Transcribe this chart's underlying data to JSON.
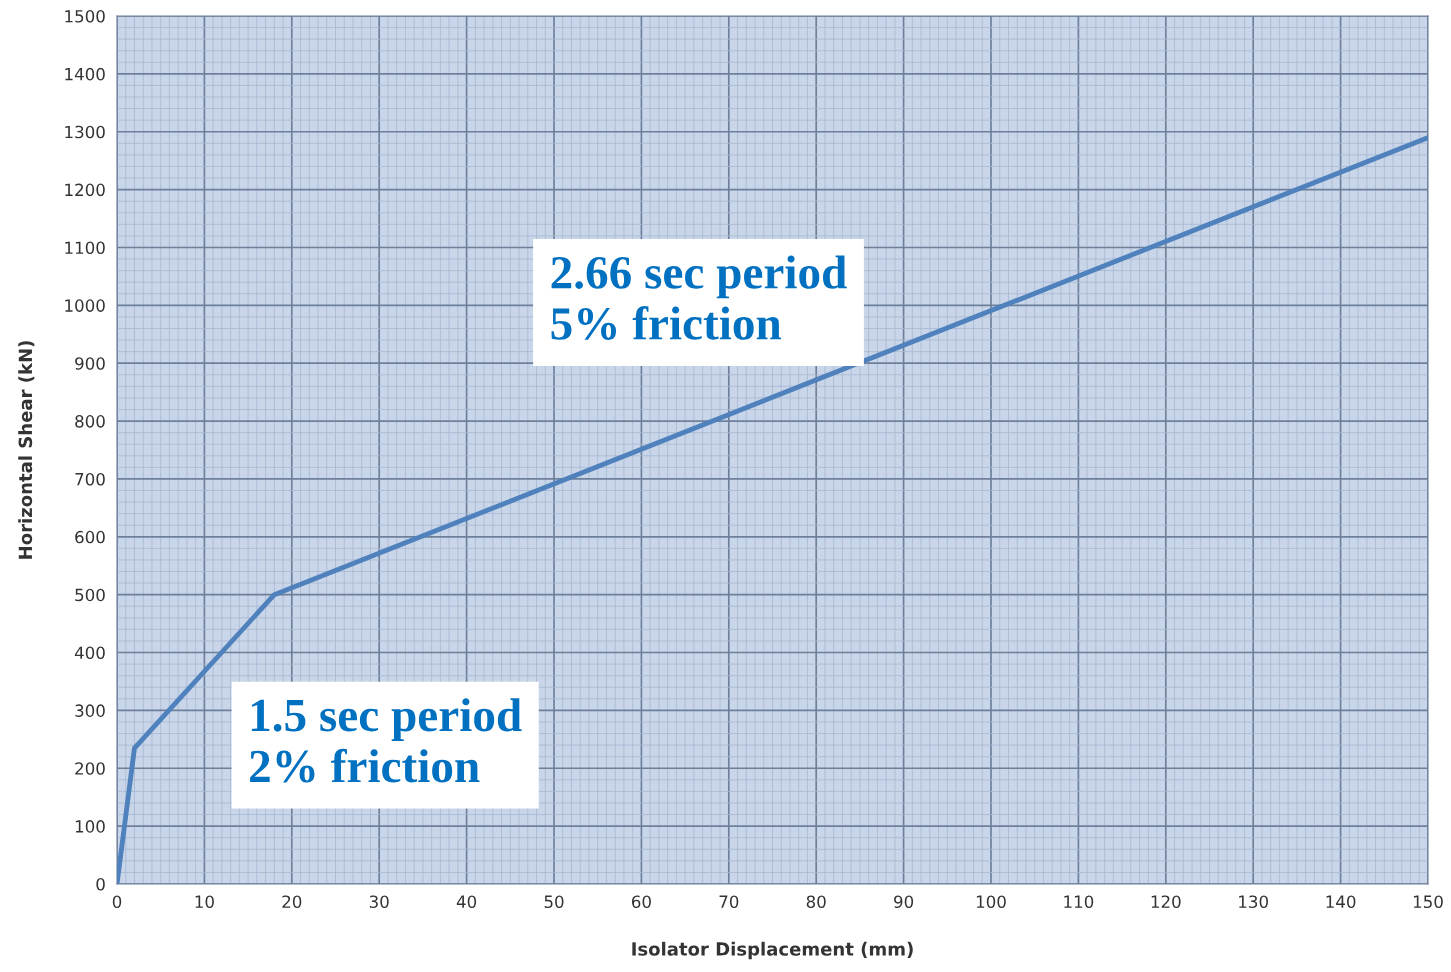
{
  "chart_data": {
    "type": "line",
    "xlabel": "Isolator Displacement (mm)",
    "ylabel": "Horizontal Shear (kN)",
    "x": [
      0,
      2,
      18,
      150
    ],
    "series": [
      {
        "color": "#4f81bd",
        "values": [
          0,
          235,
          500,
          1290
        ]
      }
    ],
    "xlim": [
      0,
      150
    ],
    "xticks": [
      0,
      {
        "value": 1,
        "label": null
      },
      {
        "value": 2,
        "label": null
      },
      {
        "value": 3,
        "label": null
      },
      {
        "value": 4,
        "label": null
      },
      {
        "value": 5,
        "label": null
      },
      {
        "value": 6,
        "label": null
      },
      {
        "value": 7,
        "label": null
      },
      {
        "value": 8,
        "label": null
      },
      {
        "value": 9,
        "label": null
      },
      10,
      {
        "value": 11,
        "label": null
      },
      {
        "value": 12,
        "label": null
      },
      {
        "value": 13,
        "label": null
      },
      {
        "value": 14,
        "label": null
      },
      {
        "value": 15,
        "label": null
      },
      {
        "value": 16,
        "label": null
      },
      {
        "value": 17,
        "label": null
      },
      {
        "value": 18,
        "label": null
      },
      {
        "value": 19,
        "label": null
      },
      20,
      {
        "value": 21,
        "label": null
      },
      {
        "value": 22,
        "label": null
      },
      {
        "value": 23,
        "label": null
      },
      {
        "value": 24,
        "label": null
      },
      {
        "value": 25,
        "label": null
      },
      {
        "value": 26,
        "label": null
      },
      {
        "value": 27,
        "label": null
      },
      {
        "value": 28,
        "label": null
      },
      {
        "value": 29,
        "label": null
      },
      30,
      {
        "value": 31,
        "label": null
      },
      {
        "value": 32,
        "label": null
      },
      {
        "value": 33,
        "label": null
      },
      {
        "value": 34,
        "label": null
      },
      {
        "value": 35,
        "label": null
      },
      {
        "value": 36,
        "label": null
      },
      {
        "value": 37,
        "label": null
      },
      {
        "value": 38,
        "label": null
      },
      {
        "value": 39,
        "label": null
      },
      40,
      {
        "value": 41,
        "label": null
      },
      {
        "value": 42,
        "label": null
      },
      {
        "value": 43,
        "label": null
      },
      {
        "value": 44,
        "label": null
      },
      {
        "value": 45,
        "label": null
      },
      {
        "value": 46,
        "label": null
      },
      {
        "value": 47,
        "label": null
      },
      {
        "value": 48,
        "label": null
      },
      {
        "value": 49,
        "label": null
      },
      50,
      {
        "value": 51,
        "label": null
      },
      {
        "value": 52,
        "label": null
      },
      {
        "value": 53,
        "label": null
      },
      {
        "value": 54,
        "label": null
      },
      {
        "value": 55,
        "label": null
      },
      {
        "value": 56,
        "label": null
      },
      {
        "value": 57,
        "label": null
      },
      {
        "value": 58,
        "label": null
      },
      {
        "value": 59,
        "label": null
      },
      60,
      {
        "value": 61,
        "label": null
      },
      {
        "value": 62,
        "label": null
      },
      {
        "value": 63,
        "label": null
      },
      {
        "value": 64,
        "label": null
      },
      {
        "value": 65,
        "label": null
      },
      {
        "value": 66,
        "label": null
      },
      {
        "value": 67,
        "label": null
      },
      {
        "value": 68,
        "label": null
      },
      {
        "value": 69,
        "label": null
      },
      70,
      {
        "value": 71,
        "label": null
      },
      {
        "value": 72,
        "label": null
      },
      {
        "value": 73,
        "label": null
      },
      {
        "value": 74,
        "label": null
      },
      {
        "value": 75,
        "label": null
      },
      {
        "value": 76,
        "label": null
      },
      {
        "value": 77,
        "label": null
      },
      {
        "value": 78,
        "label": null
      },
      {
        "value": 79,
        "label": null
      },
      80,
      {
        "value": 81,
        "label": null
      },
      {
        "value": 82,
        "label": null
      },
      {
        "value": 83,
        "label": null
      },
      {
        "value": 84,
        "label": null
      },
      {
        "value": 85,
        "label": null
      },
      {
        "value": 86,
        "label": null
      },
      {
        "value": 87,
        "label": null
      },
      {
        "value": 88,
        "label": null
      },
      {
        "value": 89,
        "label": null
      },
      90,
      {
        "value": 91,
        "label": null
      },
      {
        "value": 92,
        "label": null
      },
      {
        "value": 93,
        "label": null
      },
      {
        "value": 94,
        "label": null
      },
      {
        "value": 95,
        "label": null
      },
      {
        "value": 96,
        "label": null
      },
      {
        "value": 97,
        "label": null
      },
      {
        "value": 98,
        "label": null
      },
      {
        "value": 99,
        "label": null
      },
      100,
      {
        "value": 101,
        "label": null
      },
      {
        "value": 102,
        "label": null
      },
      {
        "value": 103,
        "label": null
      },
      {
        "value": 104,
        "label": null
      },
      {
        "value": 105,
        "label": null
      },
      {
        "value": 106,
        "label": null
      },
      {
        "value": 107,
        "label": null
      },
      {
        "value": 108,
        "label": null
      },
      {
        "value": 109,
        "label": null
      },
      110,
      {
        "value": 111,
        "label": null
      },
      {
        "value": 112,
        "label": null
      },
      {
        "value": 113,
        "label": null
      },
      {
        "value": 114,
        "label": null
      },
      {
        "value": 115,
        "label": null
      },
      {
        "value": 116,
        "label": null
      },
      {
        "value": 117,
        "label": null
      },
      {
        "value": 118,
        "label": null
      },
      {
        "value": 119,
        "label": null
      },
      120,
      {
        "value": 121,
        "label": null
      },
      {
        "value": 122,
        "label": null
      },
      {
        "value": 123,
        "label": null
      },
      {
        "value": 124,
        "label": null
      },
      {
        "value": 125,
        "label": null
      },
      {
        "value": 126,
        "label": null
      },
      {
        "value": 127,
        "label": null
      },
      {
        "value": 128,
        "label": null
      },
      {
        "value": 129,
        "label": null
      },
      130,
      {
        "value": 131,
        "label": null
      },
      {
        "value": 132,
        "label": null
      },
      {
        "value": 133,
        "label": null
      },
      {
        "value": 134,
        "label": null
      },
      {
        "value": 135,
        "label": null
      },
      {
        "value": 136,
        "label": null
      },
      {
        "value": 137,
        "label": null
      },
      {
        "value": 138,
        "label": null
      },
      {
        "value": 139,
        "label": null
      },
      140,
      {
        "value": 141,
        "label": null
      },
      {
        "value": 142,
        "label": null
      },
      {
        "value": 143,
        "label": null
      },
      {
        "value": 144,
        "label": null
      },
      {
        "value": 145,
        "label": null
      },
      {
        "value": 146,
        "label": null
      },
      {
        "value": 147,
        "label": null
      },
      {
        "value": 148,
        "label": null
      },
      {
        "value": 149,
        "label": null
      },
      150
    ],
    "ylim": [
      0,
      1500
    ],
    "yticks": [
      0,
      {
        "value": 20,
        "label": null
      },
      {
        "value": 40,
        "label": null
      },
      {
        "value": 60,
        "label": null
      },
      {
        "value": 80,
        "label": null
      },
      100,
      {
        "value": 120,
        "label": null
      },
      {
        "value": 140,
        "label": null
      },
      {
        "value": 160,
        "label": null
      },
      {
        "value": 180,
        "label": null
      },
      200,
      {
        "value": 220,
        "label": null
      },
      {
        "value": 240,
        "label": null
      },
      {
        "value": 260,
        "label": null
      },
      {
        "value": 280,
        "label": null
      },
      300,
      {
        "value": 320,
        "label": null
      },
      {
        "value": 340,
        "label": null
      },
      {
        "value": 360,
        "label": null
      },
      {
        "value": 380,
        "label": null
      },
      400,
      {
        "value": 420,
        "label": null
      },
      {
        "value": 440,
        "label": null
      },
      {
        "value": 460,
        "label": null
      },
      {
        "value": 480,
        "label": null
      },
      500,
      {
        "value": 520,
        "label": null
      },
      {
        "value": 540,
        "label": null
      },
      {
        "value": 560,
        "label": null
      },
      {
        "value": 580,
        "label": null
      },
      600,
      {
        "value": 620,
        "label": null
      },
      {
        "value": 640,
        "label": null
      },
      {
        "value": 660,
        "label": null
      },
      {
        "value": 680,
        "label": null
      },
      700,
      {
        "value": 720,
        "label": null
      },
      {
        "value": 740,
        "label": null
      },
      {
        "value": 760,
        "label": null
      },
      {
        "value": 780,
        "label": null
      },
      800,
      {
        "value": 820,
        "label": null
      },
      {
        "value": 840,
        "label": null
      },
      {
        "value": 860,
        "label": null
      },
      {
        "value": 880,
        "label": null
      },
      900,
      {
        "value": 920,
        "label": null
      },
      {
        "value": 940,
        "label": null
      },
      {
        "value": 960,
        "label": null
      },
      {
        "value": 980,
        "label": null
      },
      1000,
      {
        "value": 1020,
        "label": null
      },
      {
        "value": 1040,
        "label": null
      },
      {
        "value": 1060,
        "label": null
      },
      {
        "value": 1080,
        "label": null
      },
      1100,
      {
        "value": 1120,
        "label": null
      },
      {
        "value": 1140,
        "label": null
      },
      {
        "value": 1160,
        "label": null
      },
      {
        "value": 1180,
        "label": null
      },
      1200,
      {
        "value": 1220,
        "label": null
      },
      {
        "value": 1240,
        "label": null
      },
      {
        "value": 1260,
        "label": null
      },
      {
        "value": 1280,
        "label": null
      },
      1300,
      {
        "value": 1320,
        "label": null
      },
      {
        "value": 1340,
        "label": null
      },
      {
        "value": 1360,
        "label": null
      },
      {
        "value": 1380,
        "label": null
      },
      1400,
      {
        "value": 1420,
        "label": null
      },
      {
        "value": 1440,
        "label": null
      },
      {
        "value": 1460,
        "label": null
      },
      {
        "value": 1480,
        "label": null
      },
      1500
    ],
    "grid": true,
    "marker": "none",
    "line_style": "solid",
    "annotations": [
      "2.66 sec period\n5% friction",
      "1.5 sec period\n2% friction"
    ]
  }
}
